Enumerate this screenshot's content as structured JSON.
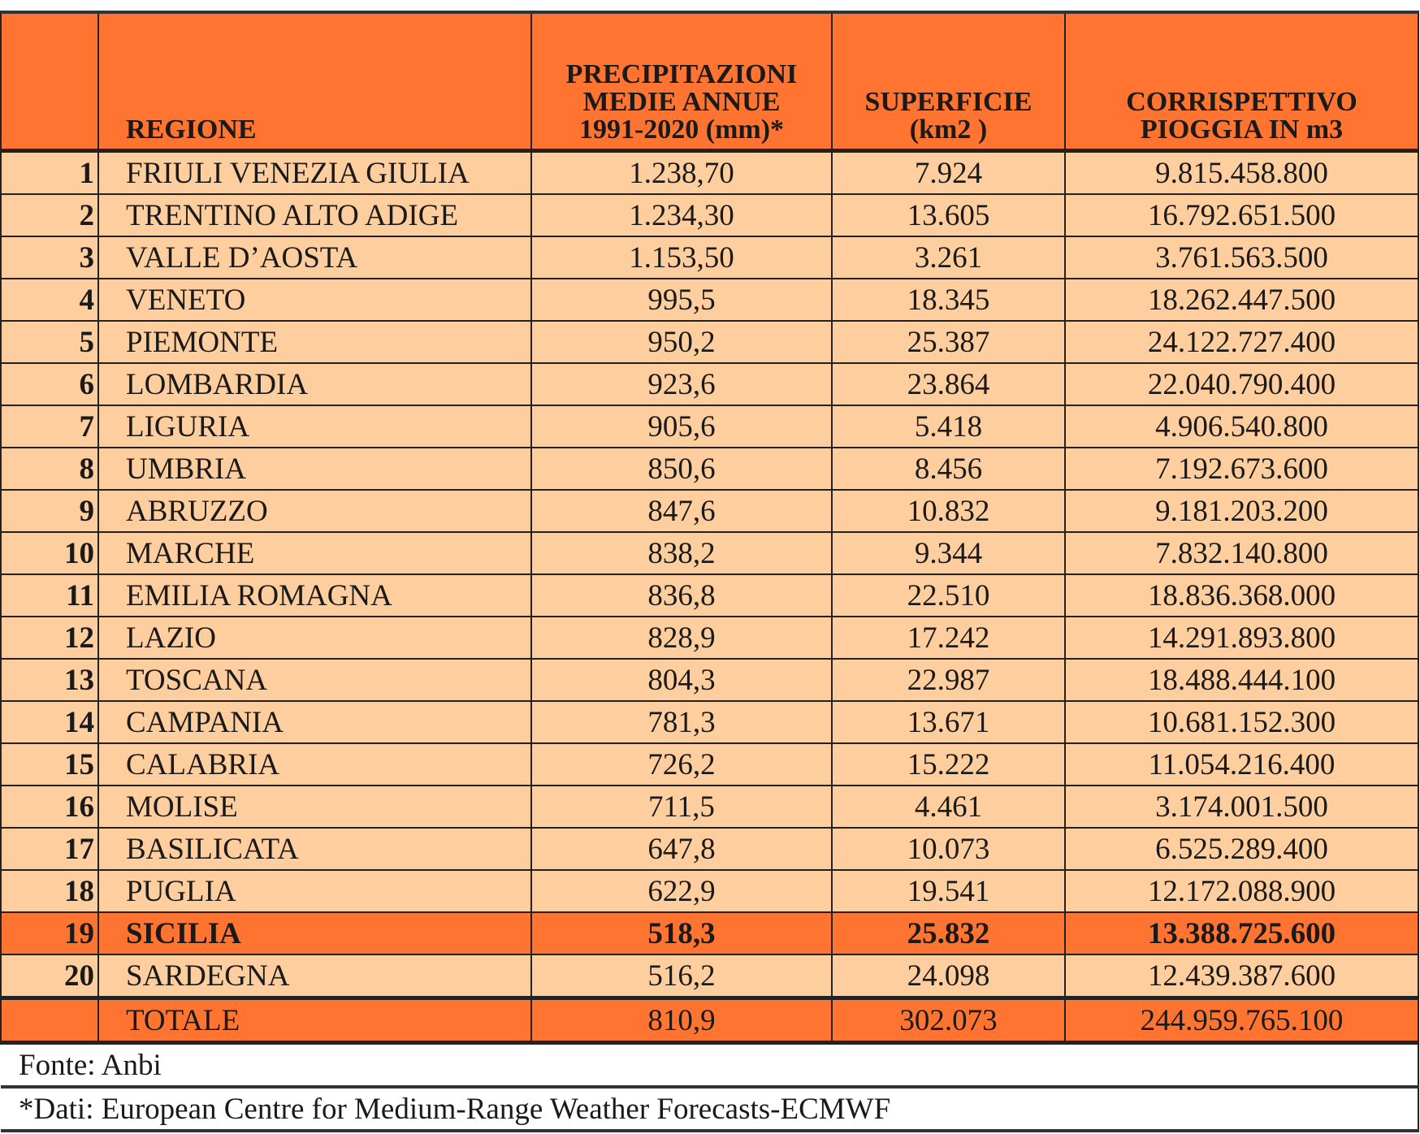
{
  "header": {
    "index": "",
    "region": "REGIONE",
    "precip": [
      "PRECIPITAZIONI",
      "MEDIE ANNUE",
      "1991-2020 (mm)*"
    ],
    "area": [
      "SUPERFICIE",
      "(km2 )"
    ],
    "rain": [
      "CORRISPETTIVO",
      "PIOGGIA IN m3"
    ]
  },
  "rows": [
    {
      "n": "1",
      "region": "FRIULI VENEZIA GIULIA",
      "precip": "1.238,70",
      "area": "7.924",
      "rain": "9.815.458.800"
    },
    {
      "n": "2",
      "region": "TRENTINO ALTO ADIGE",
      "precip": "1.234,30",
      "area": "13.605",
      "rain": "16.792.651.500"
    },
    {
      "n": "3",
      "region": "VALLE D’AOSTA",
      "precip": "1.153,50",
      "area": "3.261",
      "rain": "3.761.563.500"
    },
    {
      "n": "4",
      "region": "VENETO",
      "precip": "995,5",
      "area": "18.345",
      "rain": "18.262.447.500"
    },
    {
      "n": "5",
      "region": "PIEMONTE",
      "precip": "950,2",
      "area": "25.387",
      "rain": "24.122.727.400"
    },
    {
      "n": "6",
      "region": "LOMBARDIA",
      "precip": "923,6",
      "area": "23.864",
      "rain": "22.040.790.400"
    },
    {
      "n": "7",
      "region": "LIGURIA",
      "precip": "905,6",
      "area": "5.418",
      "rain": "4.906.540.800"
    },
    {
      "n": "8",
      "region": "UMBRIA",
      "precip": "850,6",
      "area": "8.456",
      "rain": "7.192.673.600"
    },
    {
      "n": "9",
      "region": "ABRUZZO",
      "precip": "847,6",
      "area": "10.832",
      "rain": "9.181.203.200"
    },
    {
      "n": "10",
      "region": "MARCHE",
      "precip": "838,2",
      "area": "9.344",
      "rain": "7.832.140.800"
    },
    {
      "n": "11",
      "region": "EMILIA ROMAGNA",
      "precip": "836,8",
      "area": "22.510",
      "rain": "18.836.368.000"
    },
    {
      "n": "12",
      "region": "LAZIO",
      "precip": "828,9",
      "area": "17.242",
      "rain": "14.291.893.800"
    },
    {
      "n": "13",
      "region": "TOSCANA",
      "precip": "804,3",
      "area": "22.987",
      "rain": "18.488.444.100"
    },
    {
      "n": "14",
      "region": "CAMPANIA",
      "precip": "781,3",
      "area": "13.671",
      "rain": "10.681.152.300"
    },
    {
      "n": "15",
      "region": "CALABRIA",
      "precip": "726,2",
      "area": "15.222",
      "rain": "11.054.216.400"
    },
    {
      "n": "16",
      "region": "MOLISE",
      "precip": "711,5",
      "area": "4.461",
      "rain": "3.174.001.500"
    },
    {
      "n": "17",
      "region": "BASILICATA",
      "precip": "647,8",
      "area": "10.073",
      "rain": "6.525.289.400"
    },
    {
      "n": "18",
      "region": "PUGLIA",
      "precip": "622,9",
      "area": "19.541",
      "rain": "12.172.088.900"
    },
    {
      "n": "19",
      "region": "SICILIA",
      "precip": "518,3",
      "area": "25.832",
      "rain": "13.388.725.600",
      "highlight": true
    },
    {
      "n": "20",
      "region": "SARDEGNA",
      "precip": "516,2",
      "area": "24.098",
      "rain": "12.439.387.600"
    }
  ],
  "total": {
    "label": "TOTALE",
    "precip": "810,9",
    "area": "302.073",
    "rain": "244.959.765.100"
  },
  "footnotes": [
    "Fonte: Anbi",
    "*Dati: European Centre for Medium-Range Weather Forecasts-ECMWF"
  ],
  "colors": {
    "header": "#FF7430",
    "row": "#FFCE9E",
    "highlight": "#FF7430"
  }
}
